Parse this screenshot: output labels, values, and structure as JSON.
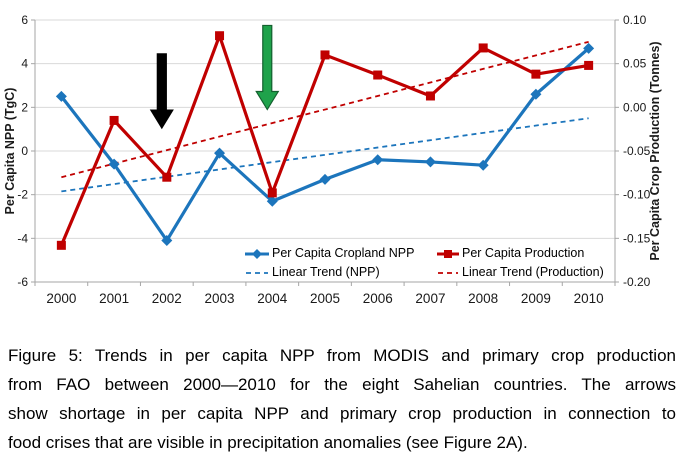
{
  "chart_data": {
    "type": "line",
    "title": "",
    "categories": [
      "2000",
      "2001",
      "2002",
      "2003",
      "2004",
      "2005",
      "2006",
      "2007",
      "2008",
      "2009",
      "2010"
    ],
    "left_axis": {
      "label": "Per Capita NPP (TgC)",
      "min": -6,
      "max": 6,
      "tick_step": 2
    },
    "right_axis": {
      "label": "Per Capita Crop Production (Tonnes)",
      "min": -0.2,
      "max": 0.1,
      "tick_step": 0.05
    },
    "grid": true,
    "legend_position": "inside-bottom-right",
    "series": [
      {
        "name": "Per Capita Cropland NPP",
        "axis": "left",
        "color": "#1C75BC",
        "marker": "diamond",
        "line": "solid",
        "values": [
          2.5,
          -0.6,
          -4.1,
          -0.1,
          -2.3,
          -1.3,
          -0.4,
          -0.5,
          -0.65,
          2.6,
          4.7
        ]
      },
      {
        "name": "Per Capita Production",
        "axis": "right",
        "color": "#C00000",
        "marker": "square",
        "line": "solid",
        "values": [
          -0.158,
          -0.015,
          -0.08,
          0.082,
          -0.098,
          0.06,
          0.037,
          0.013,
          0.068,
          0.038,
          0.048
        ]
      },
      {
        "name": "Linear Trend (NPP)",
        "axis": "left",
        "color": "#1C75BC",
        "marker": "none",
        "line": "dashed",
        "trend": [
          -1.85,
          1.5
        ]
      },
      {
        "name": "Linear Trend (Production)",
        "axis": "right",
        "color": "#C00000",
        "marker": "none",
        "line": "dashed",
        "trend": [
          -0.08,
          0.075
        ]
      }
    ],
    "annotations": [
      {
        "name": "shortage-arrow-2002",
        "shape": "arrow-down",
        "category": "2002",
        "from_value": 4.45,
        "to_value": 1.05,
        "axis": "left",
        "fill": "#000000",
        "stroke": "#000000"
      },
      {
        "name": "shortage-arrow-2004",
        "shape": "arrow-down",
        "category": "2004",
        "from_value": 5.75,
        "to_value": 1.9,
        "axis": "left",
        "fill": "#1FA24B",
        "stroke": "#14602F"
      }
    ]
  },
  "caption": {
    "lines": [
      "Figure 5: Trends in per capita NPP from MODIS and primary crop production",
      "from FAO between 2000—2010 for the eight Sahelian countries. The arrows",
      "show shortage in per capita NPP and primary crop production in connection to",
      "food crises that are visible in precipitation anomalies (see Figure 2A)."
    ]
  }
}
